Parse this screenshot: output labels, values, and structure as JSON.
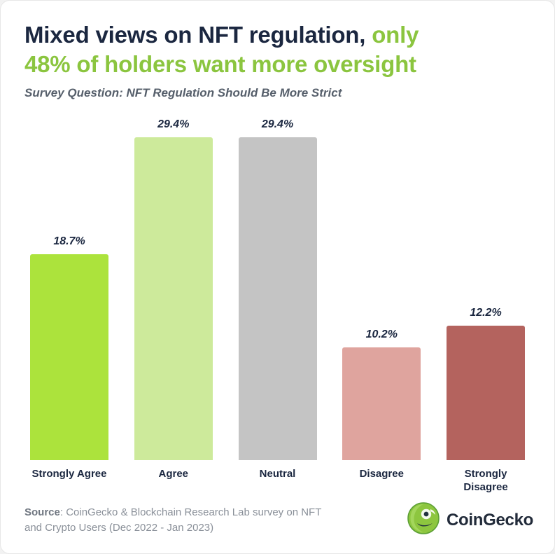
{
  "title": {
    "dark": "Mixed views on NFT regulation,",
    "green_line1": "only",
    "green_line2": "48% of holders want more oversight"
  },
  "subtitle": "Survey Question: NFT Regulation Should Be More Strict",
  "chart_data": {
    "type": "bar",
    "title": "Mixed views on NFT regulation, only 48% of holders want more oversight",
    "subtitle": "Survey Question: NFT Regulation Should Be More Strict",
    "categories": [
      "Strongly Agree",
      "Agree",
      "Neutral",
      "Disagree",
      "Strongly Disagree"
    ],
    "values": [
      18.7,
      29.4,
      29.4,
      10.2,
      12.2
    ],
    "value_labels": [
      "18.7%",
      "29.4%",
      "29.4%",
      "10.2%",
      "12.2%"
    ],
    "bar_colors": [
      "#ace33c",
      "#cdea9b",
      "#c4c4c4",
      "#dfa49e",
      "#b4635e"
    ],
    "xlabel": "",
    "ylabel": "",
    "ylim": [
      0,
      30
    ],
    "grid": false,
    "legend": null,
    "value_label_position": "above-bar"
  },
  "footer": {
    "source_label": "Source",
    "source_rest": ": CoinGecko & Blockchain Research Lab survey on NFT and Crypto Users (Dec 2022 - Jan 2023)",
    "brand": "CoinGecko"
  },
  "colors": {
    "accent_green": "#8bc53f",
    "heading": "#1b2740",
    "subtitle_gray": "#565f6b"
  }
}
